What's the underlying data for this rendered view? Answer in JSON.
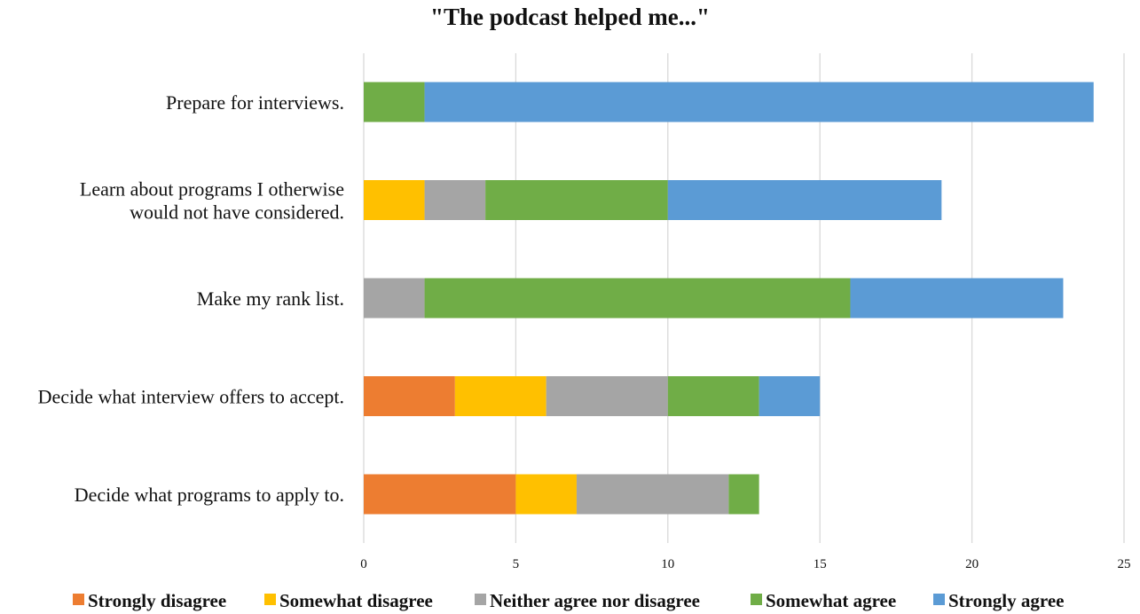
{
  "chart_data": {
    "type": "bar",
    "orientation": "horizontal",
    "stacked": true,
    "title": "\"The podcast helped me...\"",
    "categories": [
      [
        "Prepare for interviews."
      ],
      [
        "Learn about programs I otherwise",
        "would not have considered."
      ],
      [
        "Make my rank list."
      ],
      [
        "Decide what interview offers to accept."
      ],
      [
        "Decide what programs to apply to."
      ]
    ],
    "series": [
      {
        "name": "Strongly disagree",
        "color": "#ED7D31",
        "values": [
          0,
          0,
          0,
          3,
          5
        ]
      },
      {
        "name": "Somewhat disagree",
        "color": "#FFC000",
        "values": [
          0,
          2,
          0,
          3,
          2
        ]
      },
      {
        "name": "Neither agree nor disagree",
        "color": "#A5A5A5",
        "values": [
          0,
          2,
          2,
          4,
          5
        ]
      },
      {
        "name": "Somewhat agree",
        "color": "#70AD47",
        "values": [
          2,
          6,
          14,
          3,
          1
        ]
      },
      {
        "name": "Strongly agree",
        "color": "#5B9BD5",
        "values": [
          22,
          9,
          7,
          2,
          0
        ]
      }
    ],
    "xlim": [
      0,
      25
    ],
    "xticks": [
      "0",
      "5",
      "10",
      "15",
      "20",
      "25"
    ],
    "xlabel": "",
    "ylabel": "",
    "grid": "vertical",
    "legend": "bottom"
  }
}
